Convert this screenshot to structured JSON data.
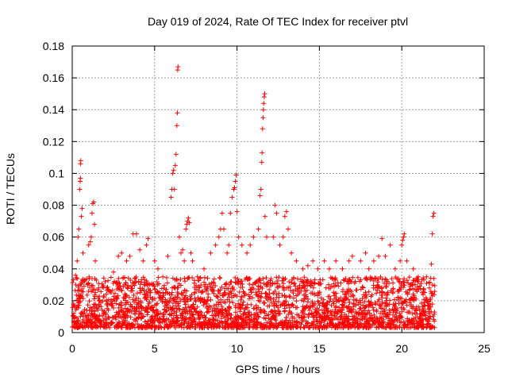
{
  "chart_data": {
    "type": "scatter",
    "title": "Day 019 of 2024, Rate Of TEC Index for receiver ptvl",
    "xlabel": "GPS time / hours",
    "ylabel": "ROTI / TECUs",
    "xlim": [
      0,
      25
    ],
    "ylim": [
      0,
      0.18
    ],
    "grid": true,
    "marker": "plus",
    "color": "#ff0000",
    "x_ticks": [
      {
        "value": 0,
        "label": "0"
      },
      {
        "value": 5,
        "label": "5"
      },
      {
        "value": 10,
        "label": "10"
      },
      {
        "value": 15,
        "label": "15"
      },
      {
        "value": 20,
        "label": "20"
      },
      {
        "value": 25,
        "label": "25"
      }
    ],
    "y_ticks": [
      {
        "value": 0,
        "label": "0"
      },
      {
        "value": 0.02,
        "label": "0.02"
      },
      {
        "value": 0.04,
        "label": "0.04"
      },
      {
        "value": 0.06,
        "label": "0.06"
      },
      {
        "value": 0.08,
        "label": "0.08"
      },
      {
        "value": 0.1,
        "label": "0.1"
      },
      {
        "value": 0.12,
        "label": "0.12"
      },
      {
        "value": 0.14,
        "label": "0.14"
      },
      {
        "value": 0.16,
        "label": "0.16"
      },
      {
        "value": 0.18,
        "label": "0.18"
      }
    ],
    "series": [
      {
        "name": "ROTI",
        "note": "dense band of points 0-0.035 TECU/s from 0 to 22 h, with peaks listed below",
        "band": {
          "x_start": 0.0,
          "x_end": 22.0,
          "y_min": 0.003,
          "y_max": 0.035
        },
        "points": [
          [
            0.2,
            0.036
          ],
          [
            0.3,
            0.045
          ],
          [
            0.35,
            0.06
          ],
          [
            0.4,
            0.065
          ],
          [
            0.45,
            0.09
          ],
          [
            0.48,
            0.095
          ],
          [
            0.5,
            0.097
          ],
          [
            0.5,
            0.106
          ],
          [
            0.52,
            0.108
          ],
          [
            0.55,
            0.073
          ],
          [
            0.6,
            0.078
          ],
          [
            0.65,
            0.05
          ],
          [
            1.0,
            0.055
          ],
          [
            1.1,
            0.057
          ],
          [
            1.15,
            0.06
          ],
          [
            1.2,
            0.075
          ],
          [
            1.25,
            0.081
          ],
          [
            1.3,
            0.082
          ],
          [
            1.35,
            0.068
          ],
          [
            1.4,
            0.045
          ],
          [
            2.0,
            0.032
          ],
          [
            2.5,
            0.038
          ],
          [
            2.8,
            0.048
          ],
          [
            3.0,
            0.05
          ],
          [
            3.3,
            0.045
          ],
          [
            3.5,
            0.048
          ],
          [
            3.7,
            0.062
          ],
          [
            3.9,
            0.062
          ],
          [
            4.1,
            0.052
          ],
          [
            4.3,
            0.045
          ],
          [
            4.5,
            0.055
          ],
          [
            4.6,
            0.059
          ],
          [
            5.0,
            0.045
          ],
          [
            5.2,
            0.04
          ],
          [
            5.5,
            0.035
          ],
          [
            5.8,
            0.048
          ],
          [
            6.0,
            0.085
          ],
          [
            6.05,
            0.09
          ],
          [
            6.1,
            0.1
          ],
          [
            6.15,
            0.102
          ],
          [
            6.2,
            0.09
          ],
          [
            6.25,
            0.105
          ],
          [
            6.3,
            0.112
          ],
          [
            6.35,
            0.13
          ],
          [
            6.38,
            0.138
          ],
          [
            6.4,
            0.165
          ],
          [
            6.42,
            0.167
          ],
          [
            6.5,
            0.06
          ],
          [
            6.6,
            0.05
          ],
          [
            6.7,
            0.052
          ],
          [
            6.8,
            0.045
          ],
          [
            6.9,
            0.065
          ],
          [
            6.95,
            0.068
          ],
          [
            7.0,
            0.07
          ],
          [
            7.05,
            0.072
          ],
          [
            7.1,
            0.069
          ],
          [
            7.2,
            0.05
          ],
          [
            7.3,
            0.045
          ],
          [
            7.6,
            0.035
          ],
          [
            8.0,
            0.04
          ],
          [
            8.4,
            0.05
          ],
          [
            8.7,
            0.055
          ],
          [
            8.9,
            0.06
          ],
          [
            9.0,
            0.065
          ],
          [
            9.1,
            0.075
          ],
          [
            9.2,
            0.065
          ],
          [
            9.4,
            0.05
          ],
          [
            9.5,
            0.055
          ],
          [
            9.6,
            0.075
          ],
          [
            9.7,
            0.085
          ],
          [
            9.8,
            0.09
          ],
          [
            9.85,
            0.091
          ],
          [
            9.9,
            0.095
          ],
          [
            9.95,
            0.099
          ],
          [
            10.0,
            0.076
          ],
          [
            10.1,
            0.06
          ],
          [
            10.3,
            0.055
          ],
          [
            10.6,
            0.05
          ],
          [
            10.8,
            0.055
          ],
          [
            11.0,
            0.06
          ],
          [
            11.3,
            0.065
          ],
          [
            11.4,
            0.086
          ],
          [
            11.45,
            0.09
          ],
          [
            11.5,
            0.107
          ],
          [
            11.52,
            0.113
          ],
          [
            11.55,
            0.128
          ],
          [
            11.58,
            0.135
          ],
          [
            11.6,
            0.14
          ],
          [
            11.62,
            0.144
          ],
          [
            11.65,
            0.148
          ],
          [
            11.68,
            0.15
          ],
          [
            11.7,
            0.073
          ],
          [
            11.8,
            0.06
          ],
          [
            12.2,
            0.06
          ],
          [
            12.3,
            0.08
          ],
          [
            12.4,
            0.075
          ],
          [
            12.6,
            0.055
          ],
          [
            12.8,
            0.06
          ],
          [
            12.9,
            0.073
          ],
          [
            13.0,
            0.076
          ],
          [
            13.1,
            0.065
          ],
          [
            13.3,
            0.05
          ],
          [
            13.6,
            0.045
          ],
          [
            14.0,
            0.04
          ],
          [
            14.3,
            0.042
          ],
          [
            14.6,
            0.045
          ],
          [
            14.9,
            0.04
          ],
          [
            15.3,
            0.045
          ],
          [
            15.6,
            0.04
          ],
          [
            16.0,
            0.045
          ],
          [
            16.4,
            0.04
          ],
          [
            16.8,
            0.045
          ],
          [
            17.0,
            0.048
          ],
          [
            17.5,
            0.045
          ],
          [
            17.8,
            0.05
          ],
          [
            18.0,
            0.04
          ],
          [
            18.3,
            0.045
          ],
          [
            18.6,
            0.048
          ],
          [
            18.8,
            0.059
          ],
          [
            19.0,
            0.048
          ],
          [
            19.3,
            0.055
          ],
          [
            19.6,
            0.04
          ],
          [
            19.9,
            0.045
          ],
          [
            20.0,
            0.055
          ],
          [
            20.05,
            0.058
          ],
          [
            20.1,
            0.06
          ],
          [
            20.15,
            0.062
          ],
          [
            20.3,
            0.045
          ],
          [
            20.7,
            0.04
          ],
          [
            21.0,
            0.035
          ],
          [
            21.5,
            0.035
          ],
          [
            21.8,
            0.043
          ],
          [
            21.85,
            0.062
          ],
          [
            21.9,
            0.073
          ],
          [
            21.95,
            0.075
          ]
        ]
      }
    ]
  }
}
